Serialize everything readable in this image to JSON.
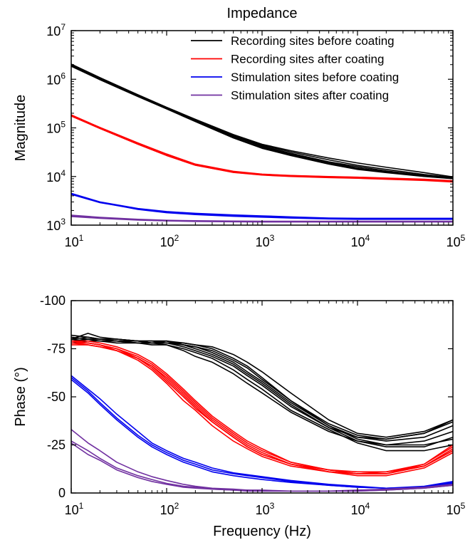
{
  "chart_data": [
    {
      "type": "line",
      "title": "Impedance",
      "xlabel": "",
      "ylabel": "Magnitude",
      "xscale": "log",
      "yscale": "log",
      "xlim": [
        10,
        100000
      ],
      "ylim": [
        1000,
        10000000
      ],
      "xticks": [
        {
          "base": "10",
          "exp": "1"
        },
        {
          "base": "10",
          "exp": "2"
        },
        {
          "base": "10",
          "exp": "3"
        },
        {
          "base": "10",
          "exp": "4"
        },
        {
          "base": "10",
          "exp": "5"
        }
      ],
      "yticks": [
        {
          "base": "10",
          "exp": "3"
        },
        {
          "base": "10",
          "exp": "4"
        },
        {
          "base": "10",
          "exp": "5"
        },
        {
          "base": "10",
          "exp": "6"
        },
        {
          "base": "10",
          "exp": "7"
        }
      ],
      "grid": false,
      "legend": "top-right",
      "series": [
        {
          "name": "Recording sites before coating",
          "color": "#000000",
          "x": [
            10,
            20,
            50,
            100,
            200,
            500,
            1000,
            2000,
            5000,
            10000,
            20000,
            50000,
            100000
          ],
          "curves": [
            [
              1900000,
              1000000,
              450000,
              250000,
              140000,
              67000,
              42000,
              30000,
              20000,
              16000,
              13000,
              10500,
              9300
            ],
            [
              2000000,
              1050000,
              470000,
              260000,
              145000,
              70000,
              44000,
              32000,
              22000,
              17000,
              14000,
              11000,
              9500
            ],
            [
              1850000,
              980000,
              440000,
              245000,
              135000,
              62000,
              38000,
              27000,
              18000,
              14000,
              12000,
              10000,
              9000
            ],
            [
              2050000,
              1080000,
              480000,
              265000,
              150000,
              73000,
              46000,
              34000,
              24000,
              19000,
              15500,
              12000,
              9800
            ],
            [
              1950000,
              1020000,
              460000,
              255000,
              142000,
              68000,
              41000,
              29000,
              19500,
              15000,
              12500,
              10200,
              9200
            ],
            [
              1900000,
              1000000,
              455000,
              250000,
              138000,
              64000,
              39000,
              28000,
              18500,
              14500,
              12200,
              10100,
              9100
            ]
          ]
        },
        {
          "name": "Recording sites after coating",
          "color": "#ff0000",
          "x": [
            10,
            20,
            50,
            100,
            200,
            500,
            1000,
            2000,
            5000,
            10000,
            20000,
            50000,
            100000
          ],
          "curves": [
            [
              180000,
              100000,
              48000,
              28000,
              17500,
              12500,
              11000,
              10300,
              9800,
              9500,
              9100,
              8600,
              8000
            ],
            [
              175000,
              97000,
              46000,
              27000,
              17000,
              12200,
              10800,
              10100,
              9600,
              9300,
              8900,
              8400,
              7800
            ],
            [
              185000,
              102000,
              49000,
              29000,
              18000,
              12800,
              11200,
              10500,
              10000,
              9700,
              9300,
              8800,
              8200
            ],
            [
              178000,
              99000,
              47000,
              27500,
              17200,
              12300,
              10900,
              10200,
              9700,
              9400,
              9000,
              8500,
              7900
            ],
            [
              182000,
              101000,
              48500,
              28500,
              17800,
              12600,
              11100,
              10400,
              9900,
              9600,
              9200,
              8700,
              8100
            ],
            [
              176000,
              98000,
              46500,
              27200,
              17100,
              12100,
              10700,
              10000,
              9500,
              9200,
              8800,
              8300,
              7700
            ]
          ]
        },
        {
          "name": "Stimulation sites before coating",
          "color": "#0000ee",
          "x": [
            10,
            20,
            50,
            100,
            200,
            500,
            1000,
            2000,
            5000,
            10000,
            20000,
            50000,
            100000
          ],
          "curves": [
            [
              4500,
              3000,
              2200,
              1900,
              1750,
              1620,
              1550,
              1480,
              1400,
              1380,
              1380,
              1380,
              1380
            ],
            [
              4300,
              2900,
              2150,
              1850,
              1700,
              1580,
              1500,
              1440,
              1370,
              1350,
              1350,
              1350,
              1350
            ],
            [
              4400,
              2950,
              2100,
              1800,
              1650,
              1520,
              1460,
              1400,
              1340,
              1320,
              1320,
              1320,
              1320
            ]
          ]
        },
        {
          "name": "Stimulation sites after coating",
          "color": "#7030a0",
          "x": [
            10,
            20,
            50,
            100,
            200,
            500,
            1000,
            2000,
            5000,
            10000,
            20000,
            50000,
            100000
          ],
          "curves": [
            [
              1600,
              1450,
              1320,
              1260,
              1230,
              1210,
              1200,
              1200,
              1200,
              1200,
              1200,
              1200,
              1200
            ],
            [
              1550,
              1400,
              1300,
              1240,
              1210,
              1190,
              1180,
              1180,
              1180,
              1180,
              1180,
              1180,
              1180
            ],
            [
              1500,
              1380,
              1270,
              1220,
              1190,
              1170,
              1160,
              1160,
              1160,
              1160,
              1160,
              1160,
              1160
            ]
          ]
        }
      ]
    },
    {
      "type": "line",
      "title": "",
      "xlabel": "Frequency (Hz)",
      "ylabel": "Phase (°)",
      "xscale": "log",
      "yscale": "linear",
      "xlim": [
        10,
        100000
      ],
      "ylim": [
        0,
        100
      ],
      "xticks": [
        {
          "base": "10",
          "exp": "1"
        },
        {
          "base": "10",
          "exp": "2"
        },
        {
          "base": "10",
          "exp": "3"
        },
        {
          "base": "10",
          "exp": "4"
        },
        {
          "base": "10",
          "exp": "5"
        }
      ],
      "yticks": [
        {
          "value": 0,
          "label": "0"
        },
        {
          "value": 25,
          "label": "-25"
        },
        {
          "value": 50,
          "label": "-50"
        },
        {
          "value": 75,
          "label": "-75"
        },
        {
          "value": 100,
          "label": "-100"
        }
      ],
      "grid": false,
      "series": [
        {
          "name": "Recording sites before coating",
          "color": "#000000",
          "x": [
            10,
            15,
            20,
            30,
            50,
            70,
            100,
            150,
            200,
            300,
            500,
            700,
            1000,
            2000,
            5000,
            10000,
            20000,
            50000,
            100000
          ],
          "curves": [
            [
              80,
              83,
              81,
              80,
              79,
              79,
              78,
              76,
              74,
              71,
              66,
              61,
              56,
              45,
              34,
              29,
              28,
              31,
              38
            ],
            [
              81,
              80,
              79,
              79,
              78,
              78,
              78,
              78,
              77,
              75,
              70,
              66,
              60,
              48,
              36,
              30,
              28,
              31,
              37
            ],
            [
              79,
              80,
              80,
              79,
              79,
              78,
              79,
              77,
              76,
              73,
              68,
              63,
              58,
              47,
              35,
              29,
              27,
              29,
              35
            ],
            [
              78,
              79,
              79,
              78,
              78,
              77,
              77,
              74,
              71,
              68,
              62,
              57,
              52,
              42,
              32,
              27,
              25,
              27,
              32
            ],
            [
              82,
              81,
              80,
              80,
              79,
              79,
              79,
              78,
              77,
              76,
              72,
              68,
              63,
              52,
              38,
              31,
              29,
              32,
              38
            ],
            [
              80,
              79,
              79,
              79,
              79,
              78,
              78,
              77,
              76,
              74,
              69,
              65,
              59,
              48,
              35,
              28,
              25,
              25,
              28
            ],
            [
              79,
              80,
              80,
              79,
              78,
              78,
              77,
              75,
              73,
              70,
              64,
              59,
              54,
              43,
              33,
              26,
              22,
              22,
              25
            ],
            [
              80,
              81,
              80,
              80,
              79,
              79,
              79,
              77,
              75,
              72,
              67,
              62,
              57,
              46,
              34,
              27,
              24,
              24,
              29
            ]
          ]
        },
        {
          "name": "Recording sites after coating",
          "color": "#ff0000",
          "x": [
            10,
            15,
            20,
            30,
            50,
            70,
            100,
            150,
            200,
            300,
            500,
            700,
            1000,
            2000,
            5000,
            10000,
            20000,
            50000,
            100000
          ],
          "curves": [
            [
              78,
              78,
              77,
              75,
              70,
              65,
              58,
              50,
              44,
              37,
              29,
              24,
              20,
              15,
              11,
              10,
              10,
              14,
              23
            ],
            [
              79,
              78,
              77,
              74,
              69,
              64,
              57,
              48,
              43,
              35,
              27,
              23,
              19,
              14,
              11,
              10,
              10,
              15,
              24
            ],
            [
              77,
              77,
              76,
              74,
              70,
              66,
              60,
              52,
              46,
              38,
              30,
              25,
              21,
              15,
              12,
              10,
              11,
              15,
              25
            ],
            [
              78,
              78,
              77,
              75,
              71,
              67,
              61,
              53,
              47,
              39,
              31,
              26,
              22,
              16,
              12,
              11,
              11,
              14,
              22
            ],
            [
              79,
              79,
              78,
              76,
              72,
              68,
              62,
              54,
              48,
              40,
              32,
              27,
              23,
              16,
              12,
              10,
              10,
              14,
              22
            ],
            [
              78,
              77,
              76,
              74,
              70,
              66,
              59,
              51,
              45,
              37,
              29,
              24,
              20,
              15,
              11,
              9,
              9,
              13,
              21
            ]
          ]
        },
        {
          "name": "Stimulation sites before coating",
          "color": "#0000ee",
          "x": [
            10,
            15,
            20,
            30,
            50,
            70,
            100,
            150,
            200,
            300,
            500,
            700,
            1000,
            2000,
            5000,
            10000,
            20000,
            50000,
            100000
          ],
          "curves": [
            [
              61,
              54,
              49,
              41,
              32,
              26,
              22,
              18,
              16,
              13,
              10.5,
              9.5,
              8.5,
              6.5,
              4.5,
              3.5,
              2.5,
              3,
              5
            ],
            [
              60,
              53,
              47,
              39,
              30,
              25,
              21,
              17,
              15,
              12,
              10,
              9,
              8,
              6,
              4,
              3,
              2.5,
              3.5,
              6
            ],
            [
              59,
              52,
              46,
              38,
              29,
              24,
              20,
              16,
              14,
              11,
              9,
              8,
              7,
              5.5,
              4,
              3,
              2.5,
              3,
              5.5
            ]
          ]
        },
        {
          "name": "Stimulation sites after coating",
          "color": "#7030a0",
          "x": [
            10,
            15,
            20,
            30,
            50,
            70,
            100,
            150,
            200,
            300,
            500,
            700,
            1000,
            2000,
            5000,
            10000,
            20000,
            50000,
            100000
          ],
          "curves": [
            [
              33,
              26,
              22,
              16,
              11,
              8.5,
              6.5,
              4.5,
              3.5,
              2.5,
              2,
              1.5,
              1.5,
              1,
              1,
              1.5,
              2,
              3,
              4.5
            ],
            [
              27,
              22,
              18,
              13,
              9,
              7,
              5,
              3.5,
              3,
              2,
              1.5,
              1.5,
              1,
              1,
              1,
              1,
              1.5,
              2.5,
              4
            ],
            [
              26,
              20,
              17,
              12,
              8,
              6,
              4.5,
              3,
              2.5,
              2,
              1.5,
              1,
              1,
              1,
              1,
              1,
              1.5,
              2.5,
              4
            ]
          ]
        }
      ]
    }
  ]
}
